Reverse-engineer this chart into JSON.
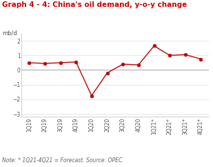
{
  "title": "Graph 4 - 4: China's oil demand, y-o-y change",
  "ylabel": "mb/d",
  "note": "Note: * 1Q21-4Q21 = Forecast. Source: OPEC.",
  "categories": [
    "1Q19",
    "2Q19",
    "3Q19",
    "4Q19",
    "1Q20",
    "2Q20",
    "3Q20",
    "4Q20",
    "1Q21*",
    "2Q21*",
    "3Q21*",
    "4Q21*"
  ],
  "values": [
    0.5,
    0.45,
    0.5,
    0.55,
    -1.75,
    -0.2,
    0.4,
    0.35,
    1.65,
    1.0,
    1.05,
    0.75
  ],
  "line_color": "#c00000",
  "marker_color": "#c00000",
  "background_color": "#ffffff",
  "plot_bg_color": "#ffffff",
  "title_color": "#cc0000",
  "ylabel_color": "#555555",
  "ylim": [
    -3.2,
    2.5
  ],
  "yticks": [
    -3,
    -2,
    -1,
    0,
    1,
    2
  ],
  "hline_y": 0,
  "title_fontsize": 7.5,
  "label_fontsize": 6.0,
  "note_fontsize": 5.5,
  "tick_fontsize": 5.5,
  "marker_size": 3.5,
  "linewidth": 1.0
}
